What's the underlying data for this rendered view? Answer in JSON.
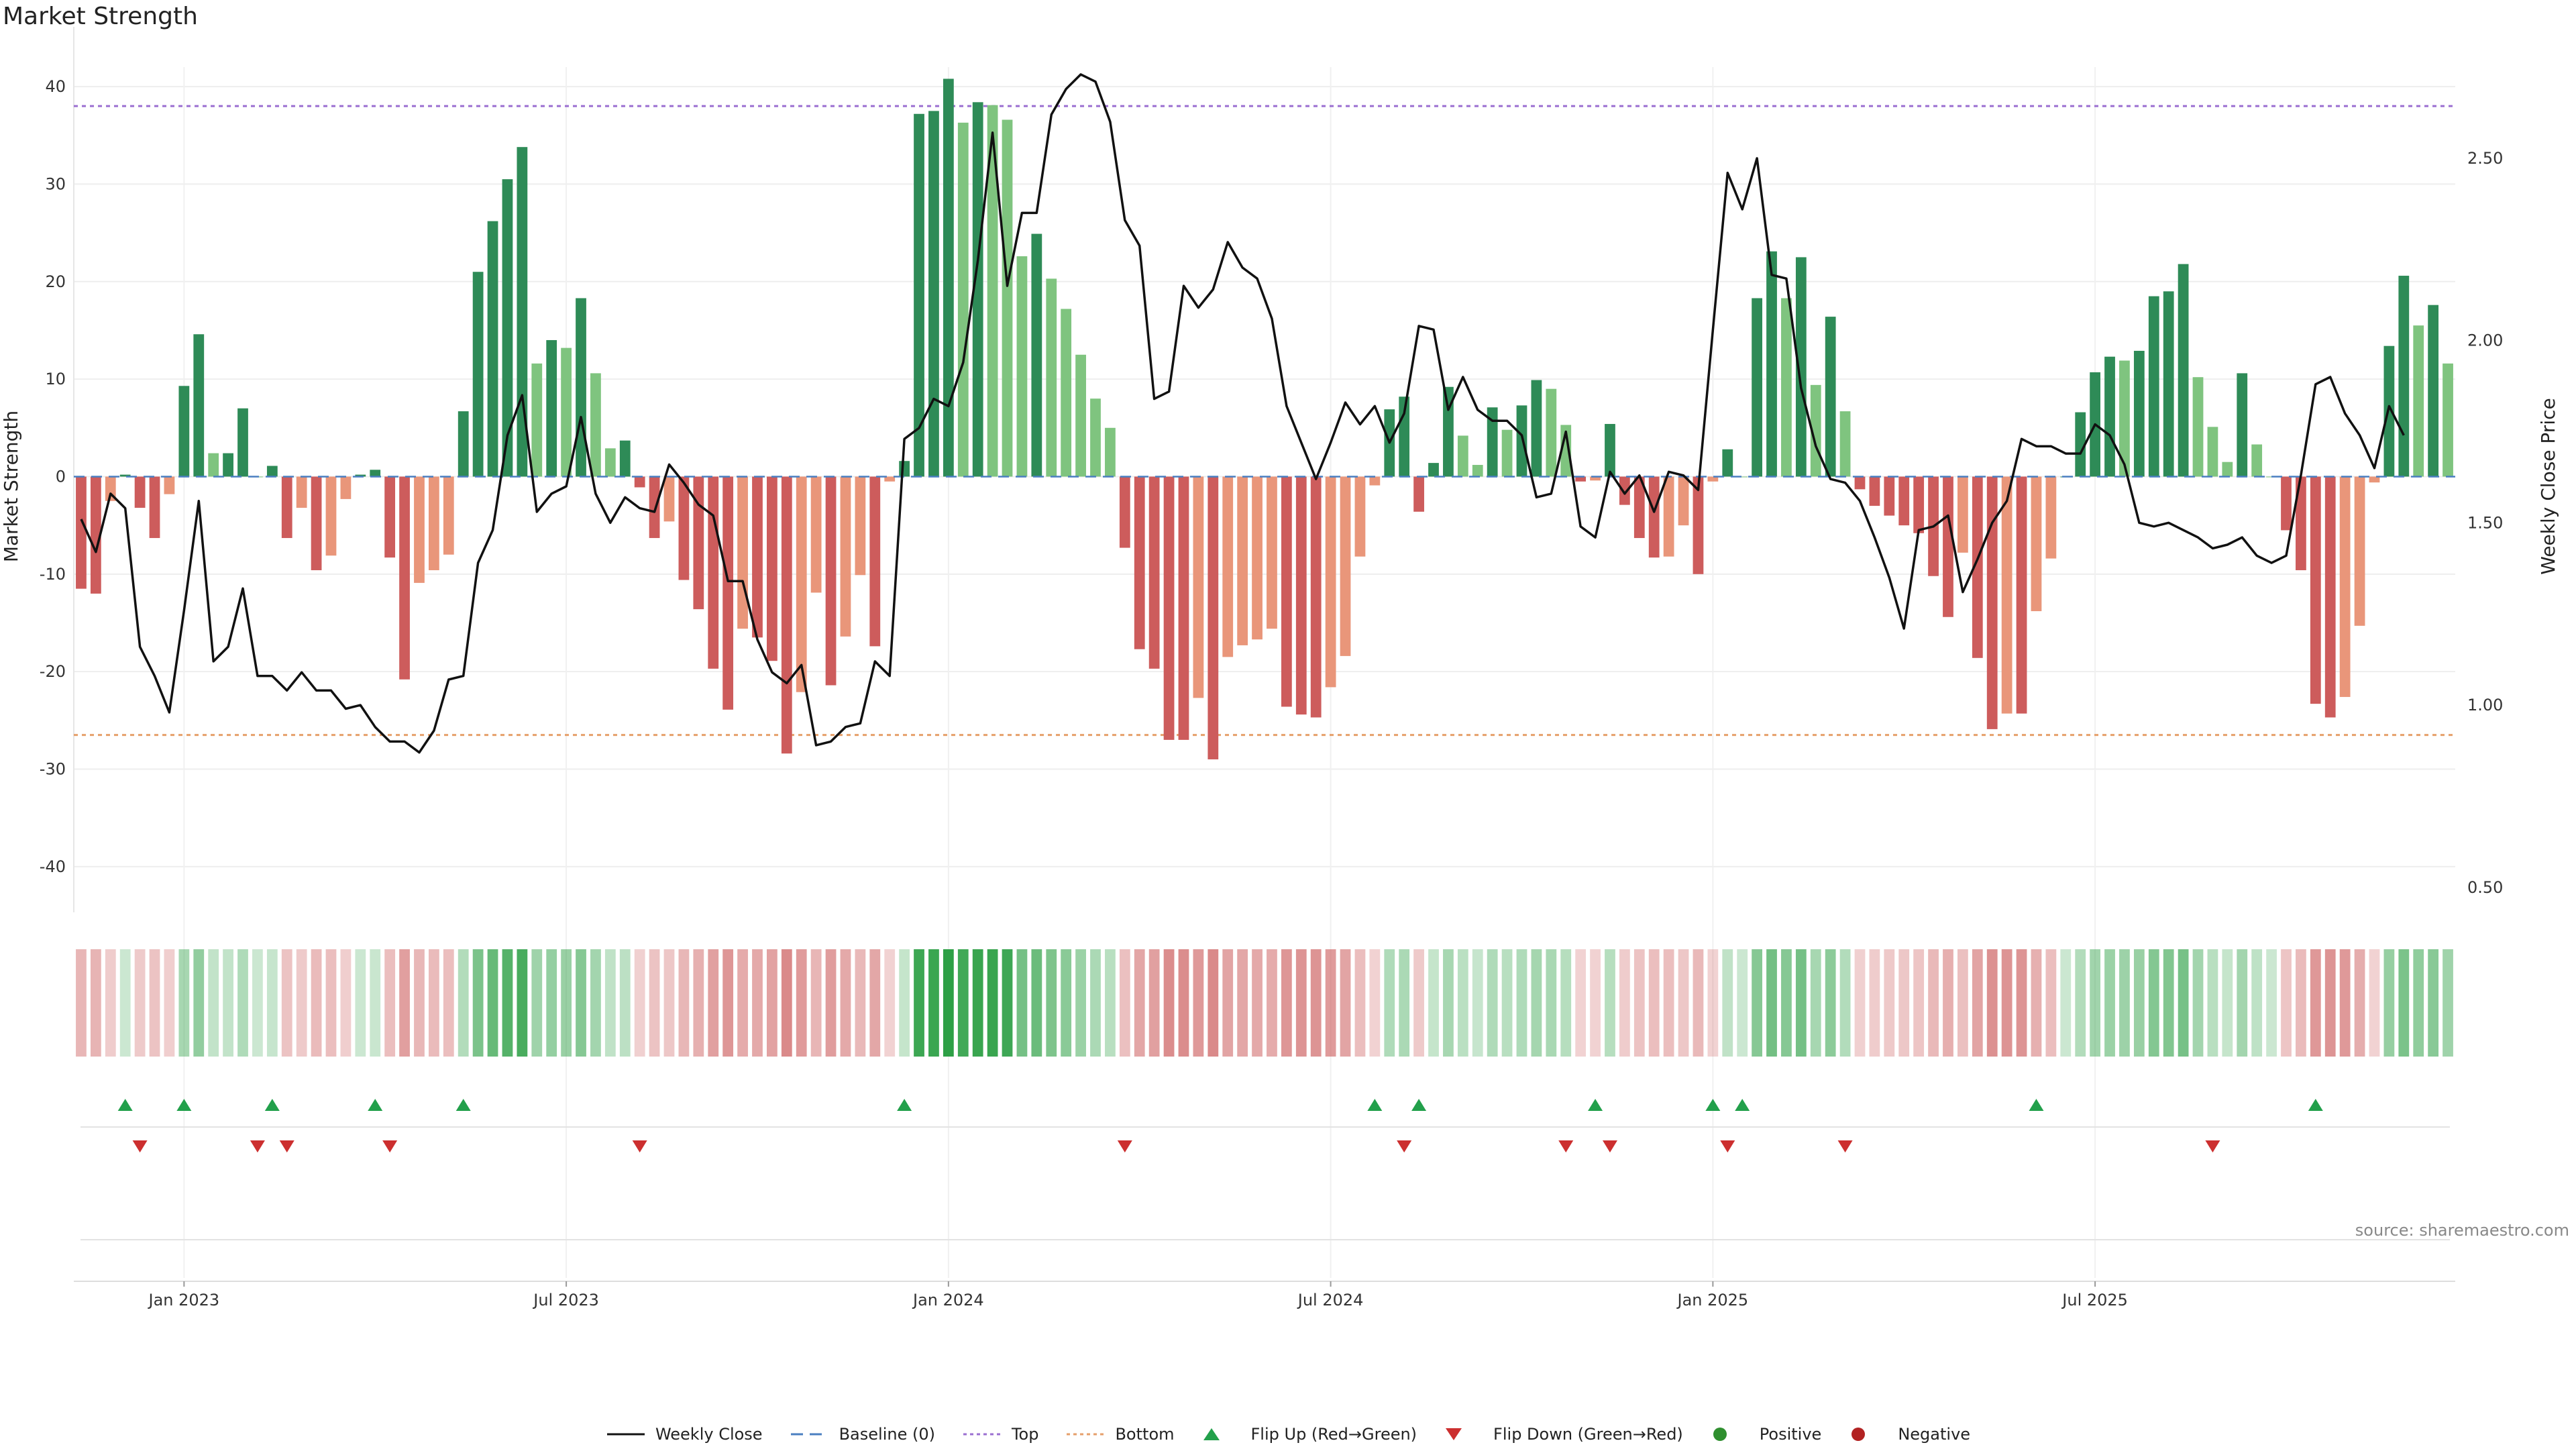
{
  "chart_data": {
    "type": "bar",
    "title": "Market Strength",
    "ylabel": "Market Strength",
    "y2label": "Weekly Close Price",
    "ylim": [
      -44,
      42
    ],
    "y2lim": [
      0.45,
      2.75
    ],
    "yticks": [
      40,
      30,
      20,
      10,
      0,
      -10,
      -20,
      -30,
      -40
    ],
    "y2ticks": [
      "2.50",
      "2.00",
      "1.50",
      "1.00",
      "0.50"
    ],
    "y2tick_values": [
      2.5,
      2.0,
      1.5,
      1.0,
      0.5
    ],
    "xticks": [
      "Jan 2023",
      "Jul 2023",
      "Jan 2024",
      "Jul 2024",
      "Jan 2025",
      "Jul 2025"
    ],
    "xtick_week_index": [
      7.5,
      33.5,
      59.5,
      85.5,
      111.5,
      137.5
    ],
    "top_level": 38,
    "bottom_level": -26.5,
    "values": [
      -11.5,
      -12,
      -2.5,
      0.2,
      -3.2,
      -6.3,
      -1.8,
      9.3,
      14.6,
      2.4,
      2.4,
      7,
      0,
      1.1,
      -6.3,
      -3.2,
      -9.6,
      -8.1,
      -2.3,
      0.2,
      0.7,
      -8.3,
      -20.8,
      -10.9,
      -9.6,
      -8,
      6.7,
      21,
      26.2,
      30.5,
      33.8,
      11.6,
      14,
      13.2,
      18.3,
      10.6,
      2.9,
      3.7,
      -1.1,
      -6.3,
      -4.6,
      -10.6,
      -13.6,
      -19.7,
      -23.9,
      -15.6,
      -16.5,
      -18.9,
      -28.4,
      -22.1,
      -11.9,
      -21.4,
      -16.4,
      -10.1,
      -17.4,
      -0.5,
      1.6,
      37.2,
      37.5,
      40.8,
      36.3,
      38.4,
      38.1,
      36.6,
      22.6,
      24.9,
      20.3,
      17.2,
      12.5,
      8,
      5,
      -7.3,
      -17.7,
      -19.7,
      -27,
      -27,
      -22.7,
      -29,
      -18.5,
      -17.3,
      -16.7,
      -15.6,
      -23.6,
      -24.4,
      -24.7,
      -21.6,
      -18.4,
      -8.2,
      -0.9,
      6.9,
      8.2,
      -3.6,
      1.4,
      9.2,
      4.2,
      1.2,
      7.1,
      4.8,
      7.3,
      9.9,
      9,
      5.3,
      -0.5,
      -0.4,
      5.4,
      -2.9,
      -6.3,
      -8.3,
      -8.2,
      -5,
      -10,
      -0.5,
      2.8,
      0,
      18.3,
      23.1,
      18.3,
      22.5,
      9.4,
      16.4,
      6.7,
      -1.3,
      -3,
      -4,
      -5,
      -5.8,
      -10.2,
      -14.4,
      -7.8,
      -18.6,
      -25.9,
      -24.3,
      -24.3,
      -13.8,
      -8.4,
      0,
      6.6,
      10.7,
      12.3,
      11.9,
      12.9,
      18.5,
      19,
      21.8,
      10.2,
      5.1,
      1.5,
      10.6,
      3.3,
      0,
      -5.5,
      -9.6,
      -23.3,
      -24.7,
      -22.6,
      -15.3,
      -0.6,
      13.4,
      20.6,
      15.5,
      17.6,
      11.6
    ],
    "price_values": [
      1.51,
      1.42,
      1.58,
      1.54,
      1.16,
      1.08,
      0.98,
      1.26,
      1.56,
      1.12,
      1.16,
      1.32,
      1.08,
      1.08,
      1.04,
      1.09,
      1.04,
      1.04,
      0.99,
      1.0,
      0.94,
      0.9,
      0.9,
      0.87,
      0.93,
      1.07,
      1.08,
      1.39,
      1.48,
      1.74,
      1.85,
      1.53,
      1.58,
      1.6,
      1.79,
      1.58,
      1.5,
      1.57,
      1.54,
      1.53,
      1.66,
      1.61,
      1.55,
      1.52,
      1.34,
      1.34,
      1.18,
      1.09,
      1.06,
      1.11,
      0.89,
      0.9,
      0.94,
      0.95,
      1.12,
      1.08,
      1.73,
      1.76,
      1.84,
      1.82,
      1.94,
      2.22,
      2.57,
      2.15,
      2.35,
      2.35,
      2.62,
      2.69,
      2.73,
      2.71,
      2.6,
      2.33,
      2.26,
      1.84,
      1.86,
      2.15,
      2.09,
      2.14,
      2.27,
      2.2,
      2.17,
      2.06,
      1.82,
      1.72,
      1.62,
      1.72,
      1.83,
      1.77,
      1.82,
      1.72,
      1.8,
      2.04,
      2.03,
      1.81,
      1.9,
      1.81,
      1.78,
      1.78,
      1.74,
      1.57,
      1.58,
      1.75,
      1.49,
      1.46,
      1.64,
      1.58,
      1.63,
      1.53,
      1.64,
      1.63,
      1.59,
      2.03,
      2.46,
      2.36,
      2.5,
      2.18,
      2.17,
      1.87,
      1.71,
      1.62,
      1.61,
      1.56,
      1.46,
      1.35,
      1.21,
      1.48,
      1.49,
      1.52,
      1.31,
      1.4,
      1.5,
      1.56,
      1.73,
      1.71,
      1.71,
      1.69,
      1.69,
      1.77,
      1.74,
      1.66,
      1.5,
      1.49,
      1.5,
      1.48,
      1.46,
      1.43,
      1.44,
      1.46,
      1.41,
      1.39,
      1.41,
      1.63,
      1.88,
      1.9,
      1.8,
      1.74,
      1.65,
      1.82,
      1.74
    ],
    "flip_up_weeks": [
      3,
      7,
      13,
      20,
      26,
      56,
      88,
      91,
      103,
      111,
      113,
      133,
      152
    ],
    "flip_down_weeks": [
      4,
      12,
      14,
      21,
      38,
      71,
      90,
      101,
      104,
      112,
      120,
      145
    ],
    "series": [
      {
        "name": "Weekly Close",
        "color": "#111111"
      },
      {
        "name": "Baseline (0)",
        "color": "#4a7fc1"
      },
      {
        "name": "Top",
        "color": "#9b6fd1"
      },
      {
        "name": "Bottom",
        "color": "#e6a06b"
      },
      {
        "name": "Flip Up (Red→Green)",
        "color": "#22a04b"
      },
      {
        "name": "Flip Down (Green→Red)",
        "color": "#cc2f2f"
      },
      {
        "name": "Positive",
        "color": "#2f8f2f"
      },
      {
        "name": "Negative",
        "color": "#b22222"
      }
    ]
  },
  "source": "source: sharemaestro.com",
  "legend": {
    "weekly_close": "Weekly Close",
    "baseline": "Baseline (0)",
    "top": "Top",
    "bottom": "Bottom",
    "flip_up": "Flip Up (Red→Green)",
    "flip_down": "Flip Down (Green→Red)",
    "positive": "Positive",
    "negative": "Negative"
  }
}
